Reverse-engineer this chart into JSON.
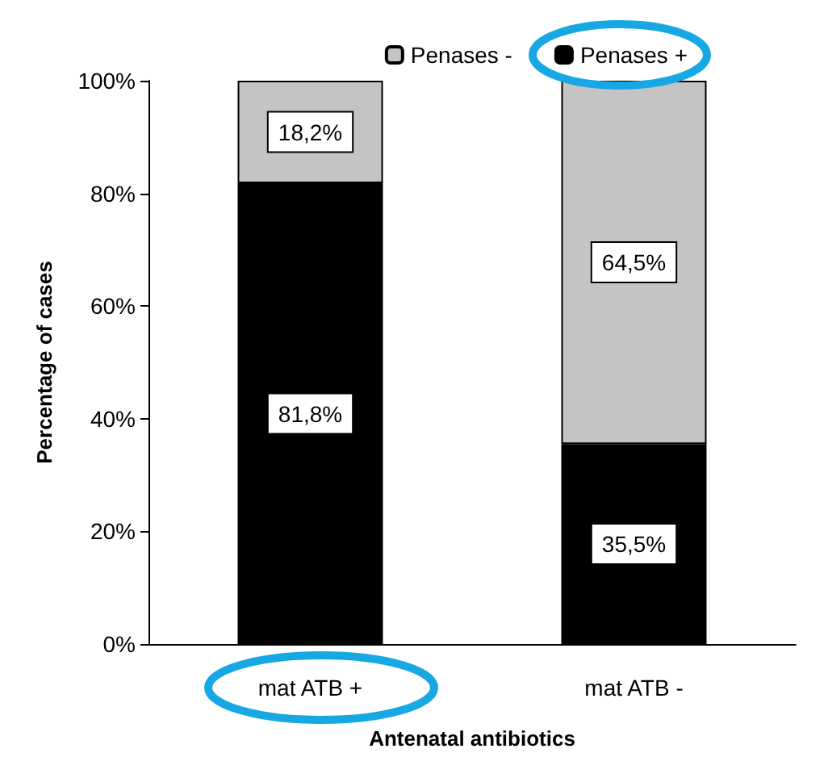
{
  "chart_data": {
    "type": "bar",
    "stacked": true,
    "xlabel": "Antenatal antibiotics",
    "ylabel": "Percentage of cases",
    "categories": [
      "mat ATB +",
      "mat ATB -"
    ],
    "series": [
      {
        "name": "Penases +",
        "color": "#000000",
        "values": [
          81.8,
          35.5
        ],
        "value_labels": [
          "81,8%",
          "35,5%"
        ]
      },
      {
        "name": "Penases -",
        "color": "#c4c4c4",
        "values": [
          18.2,
          64.5
        ],
        "value_labels": [
          "18,2%",
          "64,5%"
        ]
      }
    ],
    "ylim": [
      0,
      100
    ],
    "yticks": [
      {
        "value": 0,
        "label": "0%"
      },
      {
        "value": 20,
        "label": "20%"
      },
      {
        "value": 40,
        "label": "40%"
      },
      {
        "value": 60,
        "label": "60%"
      },
      {
        "value": 80,
        "label": "80%"
      },
      {
        "value": 100,
        "label": "100%"
      }
    ],
    "grid": false,
    "legend": "top right"
  }
}
